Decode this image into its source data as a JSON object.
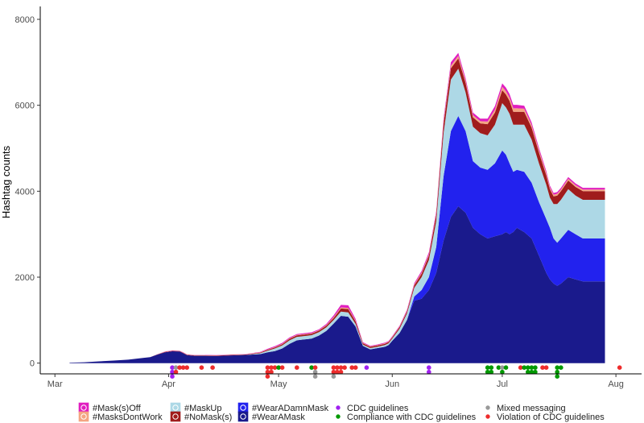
{
  "chart_data": {
    "type": "area",
    "stacked": true,
    "title": "",
    "xlabel": "",
    "ylabel": "Hashtag counts",
    "ylim": [
      -250,
      8300
    ],
    "y_ticks": [
      0,
      2000,
      4000,
      6000,
      8000
    ],
    "x_ticks": [
      {
        "label": "Mar",
        "day": 0
      },
      {
        "label": "Apr",
        "day": 31
      },
      {
        "label": "May",
        "day": 61
      },
      {
        "label": "Jun",
        "day": 92
      },
      {
        "label": "Jul",
        "day": 122
      },
      {
        "label": "Aug",
        "day": 153
      }
    ],
    "xlim_days": [
      -4,
      160
    ],
    "x_unit": "day of 2020, 0 = Mar 1",
    "grid": false,
    "legend_position": "bottom",
    "x": [
      4,
      8,
      12,
      16,
      20,
      24,
      26,
      28,
      30,
      32,
      34,
      35,
      36,
      38,
      40,
      44,
      48,
      52,
      56,
      58,
      60,
      62,
      64,
      66,
      68,
      70,
      72,
      74,
      76,
      78,
      80,
      82,
      84,
      86,
      88,
      90,
      91,
      92,
      94,
      96,
      98,
      100,
      102,
      104,
      106,
      108,
      110,
      112,
      114,
      116,
      118,
      120,
      122,
      123,
      124,
      125,
      126,
      128,
      130,
      132,
      134,
      135,
      136,
      137,
      138,
      140,
      142,
      144,
      146,
      148,
      150
    ],
    "series": [
      {
        "name": "#WearAMask",
        "color": "#1a1a8c",
        "values": [
          10,
          20,
          40,
          60,
          80,
          120,
          140,
          200,
          250,
          275,
          270,
          230,
          185,
          170,
          170,
          165,
          180,
          190,
          210,
          250,
          280,
          340,
          450,
          530,
          550,
          570,
          640,
          750,
          920,
          1100,
          1080,
          850,
          400,
          320,
          350,
          380,
          420,
          520,
          700,
          1000,
          1450,
          1500,
          1700,
          2100,
          2850,
          3400,
          3650,
          3500,
          3150,
          3000,
          2900,
          2950,
          3000,
          3050,
          3000,
          3050,
          3150,
          3050,
          2900,
          2500,
          2100,
          1950,
          1850,
          1800,
          1850,
          2000,
          1950,
          1900,
          1900,
          1900,
          1900
        ]
      },
      {
        "name": "#WearADamnMask",
        "color": "#2222ee",
        "values": [
          0,
          0,
          0,
          0,
          0,
          0,
          0,
          0,
          0,
          0,
          0,
          0,
          0,
          0,
          0,
          0,
          0,
          0,
          0,
          0,
          0,
          0,
          0,
          0,
          0,
          0,
          0,
          0,
          0,
          0,
          0,
          0,
          0,
          0,
          0,
          0,
          0,
          0,
          0,
          0,
          100,
          200,
          300,
          600,
          1500,
          2000,
          2100,
          1900,
          1550,
          1550,
          1600,
          1700,
          1950,
          1800,
          1650,
          1400,
          1350,
          1400,
          1300,
          1250,
          1250,
          1200,
          1050,
          1000,
          1050,
          1100,
          1050,
          1000,
          1000,
          1000,
          1000
        ]
      },
      {
        "name": "#MaskUp",
        "color": "#add8e6",
        "values": [
          0,
          0,
          0,
          0,
          0,
          0,
          0,
          0,
          0,
          0,
          0,
          0,
          0,
          0,
          0,
          0,
          0,
          0,
          20,
          40,
          60,
          70,
          80,
          80,
          80,
          80,
          80,
          80,
          80,
          100,
          100,
          60,
          30,
          30,
          30,
          40,
          40,
          50,
          100,
          150,
          200,
          300,
          400,
          600,
          1000,
          1200,
          1100,
          900,
          800,
          800,
          800,
          900,
          1100,
          1100,
          1150,
          1100,
          1050,
          1100,
          1000,
          900,
          800,
          700,
          800,
          900,
          900,
          950,
          900,
          900,
          900,
          900,
          900
        ]
      },
      {
        "name": "#NoMask(s)",
        "color": "#a01c1c",
        "values": [
          0,
          0,
          0,
          0,
          0,
          0,
          0,
          5,
          10,
          10,
          10,
          10,
          10,
          10,
          10,
          10,
          10,
          10,
          15,
          20,
          25,
          30,
          35,
          35,
          35,
          35,
          35,
          40,
          50,
          70,
          80,
          60,
          30,
          30,
          30,
          30,
          30,
          30,
          40,
          50,
          60,
          80,
          100,
          150,
          220,
          260,
          240,
          220,
          220,
          230,
          260,
          280,
          300,
          300,
          300,
          300,
          300,
          300,
          280,
          250,
          220,
          200,
          180,
          200,
          200,
          200,
          200,
          200,
          200,
          200,
          200
        ]
      },
      {
        "name": "#MasksDontWork",
        "color": "#f4a582",
        "values": [
          0,
          0,
          0,
          0,
          0,
          0,
          0,
          2,
          5,
          5,
          5,
          5,
          5,
          5,
          5,
          5,
          5,
          5,
          5,
          8,
          10,
          12,
          12,
          12,
          12,
          12,
          12,
          15,
          20,
          25,
          25,
          20,
          10,
          10,
          10,
          10,
          10,
          10,
          12,
          15,
          20,
          25,
          30,
          40,
          50,
          60,
          60,
          50,
          50,
          50,
          60,
          70,
          80,
          80,
          80,
          80,
          80,
          70,
          60,
          55,
          50,
          40,
          40,
          40,
          40,
          40,
          40,
          40,
          40,
          40,
          40
        ]
      },
      {
        "name": "#Mask(s)Off",
        "color": "#e01ec0",
        "values": [
          0,
          0,
          0,
          0,
          0,
          0,
          0,
          3,
          5,
          5,
          5,
          5,
          5,
          5,
          5,
          5,
          5,
          5,
          10,
          15,
          20,
          20,
          20,
          20,
          20,
          20,
          20,
          25,
          40,
          60,
          60,
          40,
          15,
          15,
          15,
          15,
          15,
          15,
          20,
          25,
          30,
          40,
          50,
          50,
          70,
          80,
          70,
          60,
          60,
          60,
          70,
          80,
          80,
          80,
          80,
          80,
          80,
          70,
          60,
          55,
          50,
          40,
          40,
          40,
          40,
          40,
          40,
          40,
          40,
          40,
          40
        ]
      }
    ],
    "event_series": [
      {
        "name": "CDC guidelines",
        "color": "#a020f0"
      },
      {
        "name": "Compliance with CDC guidelines",
        "color": "#009900"
      },
      {
        "name": "Mixed messaging",
        "color": "#999999"
      },
      {
        "name": "Violation of CDC guidelines",
        "color": "#ee2c2c"
      }
    ],
    "events": [
      {
        "day": 32,
        "series": "CDC guidelines"
      },
      {
        "day": 32,
        "series": "CDC guidelines"
      },
      {
        "day": 32,
        "series": "CDC guidelines"
      },
      {
        "day": 33,
        "series": "Mixed messaging"
      },
      {
        "day": 33,
        "series": "Violation of CDC guidelines"
      },
      {
        "day": 34,
        "series": "Violation of CDC guidelines"
      },
      {
        "day": 35,
        "series": "Violation of CDC guidelines"
      },
      {
        "day": 36,
        "series": "Violation of CDC guidelines"
      },
      {
        "day": 40,
        "series": "Violation of CDC guidelines"
      },
      {
        "day": 43,
        "series": "Violation of CDC guidelines"
      },
      {
        "day": 58,
        "series": "Violation of CDC guidelines"
      },
      {
        "day": 58,
        "series": "Violation of CDC guidelines"
      },
      {
        "day": 58,
        "series": "Violation of CDC guidelines"
      },
      {
        "day": 59,
        "series": "Violation of CDC guidelines"
      },
      {
        "day": 59,
        "series": "Violation of CDC guidelines"
      },
      {
        "day": 60,
        "series": "Violation of CDC guidelines"
      },
      {
        "day": 61,
        "series": "Compliance with CDC guidelines"
      },
      {
        "day": 62,
        "series": "Violation of CDC guidelines"
      },
      {
        "day": 66,
        "series": "Violation of CDC guidelines"
      },
      {
        "day": 70,
        "series": "Compliance with CDC guidelines"
      },
      {
        "day": 71,
        "series": "Violation of CDC guidelines"
      },
      {
        "day": 71,
        "series": "Mixed messaging"
      },
      {
        "day": 71,
        "series": "Mixed messaging"
      },
      {
        "day": 76,
        "series": "Violation of CDC guidelines"
      },
      {
        "day": 76,
        "series": "Violation of CDC guidelines"
      },
      {
        "day": 76,
        "series": "Mixed messaging"
      },
      {
        "day": 77,
        "series": "Violation of CDC guidelines"
      },
      {
        "day": 77,
        "series": "Violation of CDC guidelines"
      },
      {
        "day": 78,
        "series": "Violation of CDC guidelines"
      },
      {
        "day": 78,
        "series": "Violation of CDC guidelines"
      },
      {
        "day": 79,
        "series": "Violation of CDC guidelines"
      },
      {
        "day": 81,
        "series": "Violation of CDC guidelines"
      },
      {
        "day": 82,
        "series": "Violation of CDC guidelines"
      },
      {
        "day": 85,
        "series": "CDC guidelines"
      },
      {
        "day": 102,
        "series": "CDC guidelines"
      },
      {
        "day": 102,
        "series": "CDC guidelines"
      },
      {
        "day": 118,
        "series": "Compliance with CDC guidelines"
      },
      {
        "day": 118,
        "series": "Compliance with CDC guidelines"
      },
      {
        "day": 119,
        "series": "Compliance with CDC guidelines"
      },
      {
        "day": 119,
        "series": "Compliance with CDC guidelines"
      },
      {
        "day": 121,
        "series": "Compliance with CDC guidelines"
      },
      {
        "day": 122,
        "series": "Mixed messaging"
      },
      {
        "day": 122,
        "series": "Compliance with CDC guidelines"
      },
      {
        "day": 123,
        "series": "Compliance with CDC guidelines"
      },
      {
        "day": 127,
        "series": "Violation of CDC guidelines"
      },
      {
        "day": 128,
        "series": "Compliance with CDC guidelines"
      },
      {
        "day": 129,
        "series": "Compliance with CDC guidelines"
      },
      {
        "day": 129,
        "series": "Compliance with CDC guidelines"
      },
      {
        "day": 130,
        "series": "Compliance with CDC guidelines"
      },
      {
        "day": 130,
        "series": "Compliance with CDC guidelines"
      },
      {
        "day": 131,
        "series": "Compliance with CDC guidelines"
      },
      {
        "day": 131,
        "series": "Compliance with CDC guidelines"
      },
      {
        "day": 133,
        "series": "Violation of CDC guidelines"
      },
      {
        "day": 134,
        "series": "Violation of CDC guidelines"
      },
      {
        "day": 137,
        "series": "Compliance with CDC guidelines"
      },
      {
        "day": 137,
        "series": "Compliance with CDC guidelines"
      },
      {
        "day": 137,
        "series": "Compliance with CDC guidelines"
      },
      {
        "day": 138,
        "series": "Compliance with CDC guidelines"
      },
      {
        "day": 154,
        "series": "Violation of CDC guidelines"
      }
    ],
    "legend": [
      {
        "label": "#Mask(s)Off",
        "color": "#e01ec0",
        "style": "area"
      },
      {
        "label": "#MaskUp",
        "color": "#add8e6",
        "style": "area"
      },
      {
        "label": "#WearADamnMask",
        "color": "#2222ee",
        "style": "area"
      },
      {
        "label": "CDC guidelines",
        "color": "#a020f0",
        "style": "point"
      },
      {
        "label": "Mixed messaging",
        "color": "#999999",
        "style": "point"
      },
      {
        "label": "#MasksDontWork",
        "color": "#f4a582",
        "style": "area"
      },
      {
        "label": "#NoMask(s)",
        "color": "#a01c1c",
        "style": "area"
      },
      {
        "label": "#WearAMask",
        "color": "#1a1a8c",
        "style": "area"
      },
      {
        "label": "Compliance with CDC guidelines",
        "color": "#009900",
        "style": "point"
      },
      {
        "label": "Violation of CDC guidelines",
        "color": "#ee2c2c",
        "style": "point"
      }
    ]
  }
}
